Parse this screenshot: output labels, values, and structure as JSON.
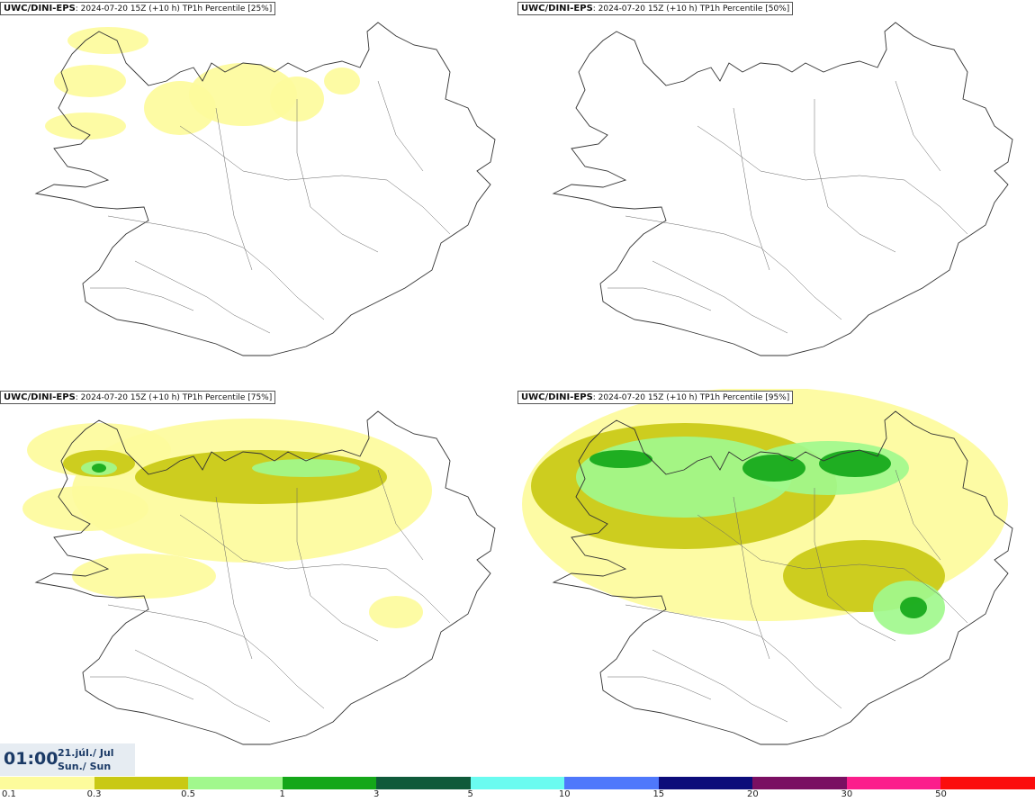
{
  "panels": [
    {
      "source": "UWC/DINI-EPS",
      "info": ": 2024-07-20 15Z (+10 h) TP1h Percentile [25%]",
      "level": 1
    },
    {
      "source": "UWC/DINI-EPS",
      "info": ": 2024-07-20 15Z (+10 h) TP1h Percentile [50%]",
      "level": 2
    },
    {
      "source": "UWC/DINI-EPS",
      "info": ": 2024-07-20 15Z (+10 h) TP1h Percentile [75%]",
      "level": 3
    },
    {
      "source": "UWC/DINI-EPS",
      "info": ": 2024-07-20 15Z (+10 h) TP1h Percentile [95%]",
      "level": 4
    }
  ],
  "valid_time": {
    "time": "01:00",
    "date": "21.júl./ Jul",
    "day": "Sun./ Sun"
  },
  "legend": {
    "colors": [
      "#fdfb9c",
      "#c9c914",
      "#a1f88d",
      "#14a719",
      "#0f5a3a",
      "#6afbf0",
      "#4f78fb",
      "#0c0c7a",
      "#7a0f62",
      "#fb1e8c",
      "#fb0d0d"
    ],
    "ticks": [
      "0.1",
      "0.3",
      "0.5",
      "1",
      "3",
      "5",
      "10",
      "15",
      "20",
      "30",
      "50"
    ]
  },
  "map_style": {
    "coast": "#333333",
    "roads": "#666666"
  }
}
